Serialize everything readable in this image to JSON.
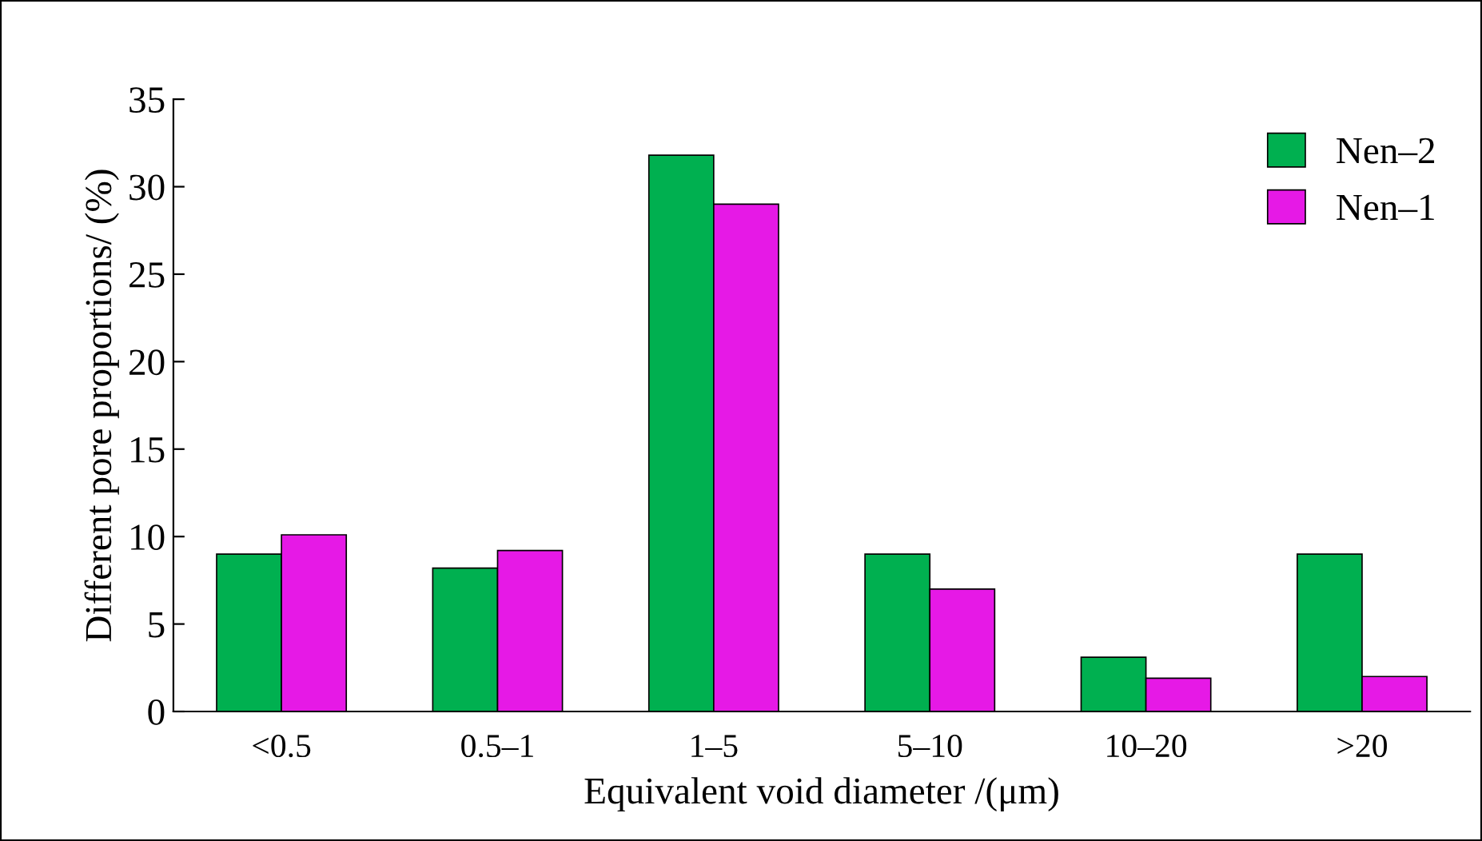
{
  "chart_data": {
    "type": "bar",
    "xlabel": "Equivalent void diameter /(μm)",
    "ylabel": "Different pore proportions/ (%)",
    "categories": [
      "<0.5",
      "0.5–1",
      "1–5",
      "5–10",
      "10–20",
      ">20"
    ],
    "series": [
      {
        "name": "Nen–2",
        "color": "#00b050",
        "values": [
          9.0,
          8.2,
          31.8,
          9.0,
          3.1,
          9.0
        ]
      },
      {
        "name": "Nen–1",
        "color": "#e619e6",
        "values": [
          10.1,
          9.2,
          29.0,
          7.0,
          1.9,
          2.0
        ]
      }
    ],
    "ylim": [
      0,
      35
    ],
    "yticks": [
      0,
      5,
      10,
      15,
      20,
      25,
      30,
      35
    ],
    "grid": false,
    "legend": "top right"
  }
}
